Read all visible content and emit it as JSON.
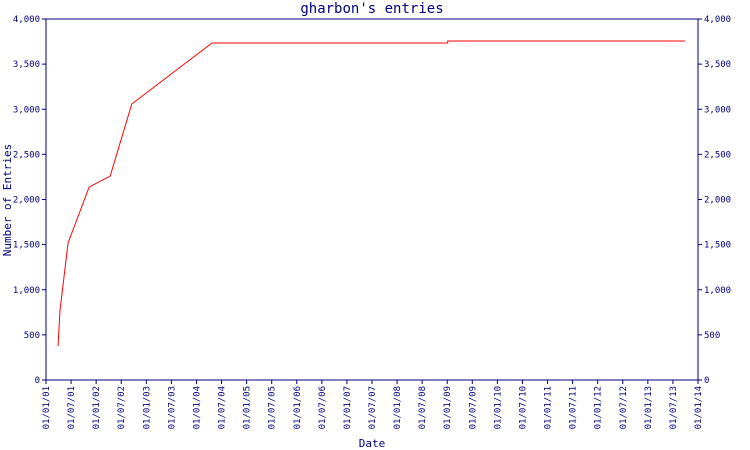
{
  "chart_data": {
    "type": "line",
    "title": "gharbon's entries",
    "x_label": "Date",
    "y_label": "Number of Entries",
    "x": [
      2001.24,
      2001.28,
      2001.44,
      2001.86,
      2002.28,
      2002.71,
      2004.31,
      2009.01,
      2009.01,
      2013.74
    ],
    "values": [
      377,
      776,
      1518,
      2138,
      2260,
      3058,
      3734,
      3734,
      3756,
      3756
    ],
    "color": "#ff0000",
    "axis_color": "#000080",
    "xlim": [
      2001,
      2014
    ],
    "xticks": [
      {
        "value": 2001,
        "label": "01/01/01"
      },
      {
        "value": 2001.5,
        "label": "01/07/01"
      },
      {
        "value": 2002,
        "label": "01/01/02"
      },
      {
        "value": 2002.5,
        "label": "01/07/02"
      },
      {
        "value": 2003,
        "label": "01/01/03"
      },
      {
        "value": 2003.5,
        "label": "01/07/03"
      },
      {
        "value": 2004,
        "label": "01/01/04"
      },
      {
        "value": 2004.5,
        "label": "01/07/04"
      },
      {
        "value": 2005,
        "label": "01/01/05"
      },
      {
        "value": 2005.5,
        "label": "01/07/05"
      },
      {
        "value": 2006,
        "label": "01/01/06"
      },
      {
        "value": 2006.5,
        "label": "01/07/06"
      },
      {
        "value": 2007,
        "label": "01/01/07"
      },
      {
        "value": 2007.5,
        "label": "01/07/07"
      },
      {
        "value": 2008,
        "label": "01/01/08"
      },
      {
        "value": 2008.5,
        "label": "01/07/08"
      },
      {
        "value": 2009,
        "label": "01/01/09"
      },
      {
        "value": 2009.5,
        "label": "01/07/09"
      },
      {
        "value": 2010,
        "label": "01/01/10"
      },
      {
        "value": 2010.5,
        "label": "01/07/10"
      },
      {
        "value": 2011,
        "label": "01/01/11"
      },
      {
        "value": 2011.5,
        "label": "01/07/11"
      },
      {
        "value": 2012,
        "label": "01/01/12"
      },
      {
        "value": 2012.5,
        "label": "01/07/12"
      },
      {
        "value": 2013,
        "label": "01/01/13"
      },
      {
        "value": 2013.5,
        "label": "01/07/13"
      },
      {
        "value": 2014,
        "label": "01/01/14"
      }
    ],
    "ylim": [
      0,
      4000
    ],
    "yticks": [
      0,
      500,
      {
        "value": 1000,
        "label": "1,000"
      },
      {
        "value": 1500,
        "label": "1,500"
      },
      {
        "value": 2000,
        "label": "2,000"
      },
      {
        "value": 2500,
        "label": "2,500"
      },
      {
        "value": 3000,
        "label": "3,000"
      },
      {
        "value": 3500,
        "label": "3,500"
      },
      {
        "value": 4000,
        "label": "4,000"
      }
    ]
  }
}
